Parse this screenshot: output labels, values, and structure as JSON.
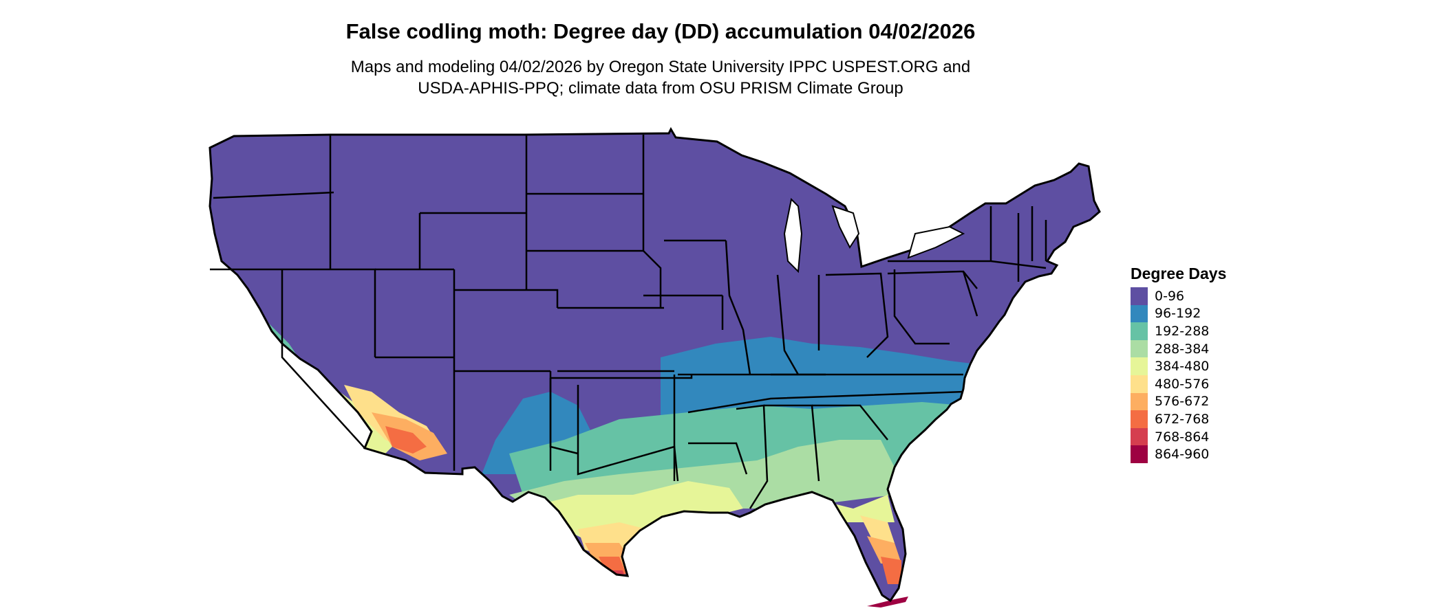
{
  "title": "False codling moth: Degree day (DD) accumulation 04/02/2026",
  "subtitle": [
    "Maps and modeling 04/02/2026 by Oregon State University IPPC USPEST.ORG and",
    "USDA-APHIS-PPQ; climate data from OSU PRISM Climate Group"
  ],
  "legend": {
    "title": "Degree Days",
    "items": [
      {
        "label": "0-96",
        "color": "#5e4fa2"
      },
      {
        "label": "96-192",
        "color": "#3288bd"
      },
      {
        "label": "192-288",
        "color": "#66c2a5"
      },
      {
        "label": "288-384",
        "color": "#abdda4"
      },
      {
        "label": "384-480",
        "color": "#e6f598"
      },
      {
        "label": "480-576",
        "color": "#fee08b"
      },
      {
        "label": "576-672",
        "color": "#fdae61"
      },
      {
        "label": "672-768",
        "color": "#f46d43"
      },
      {
        "label": "768-864",
        "color": "#d53e4f"
      },
      {
        "label": "864-960",
        "color": "#9e0142"
      }
    ]
  }
}
